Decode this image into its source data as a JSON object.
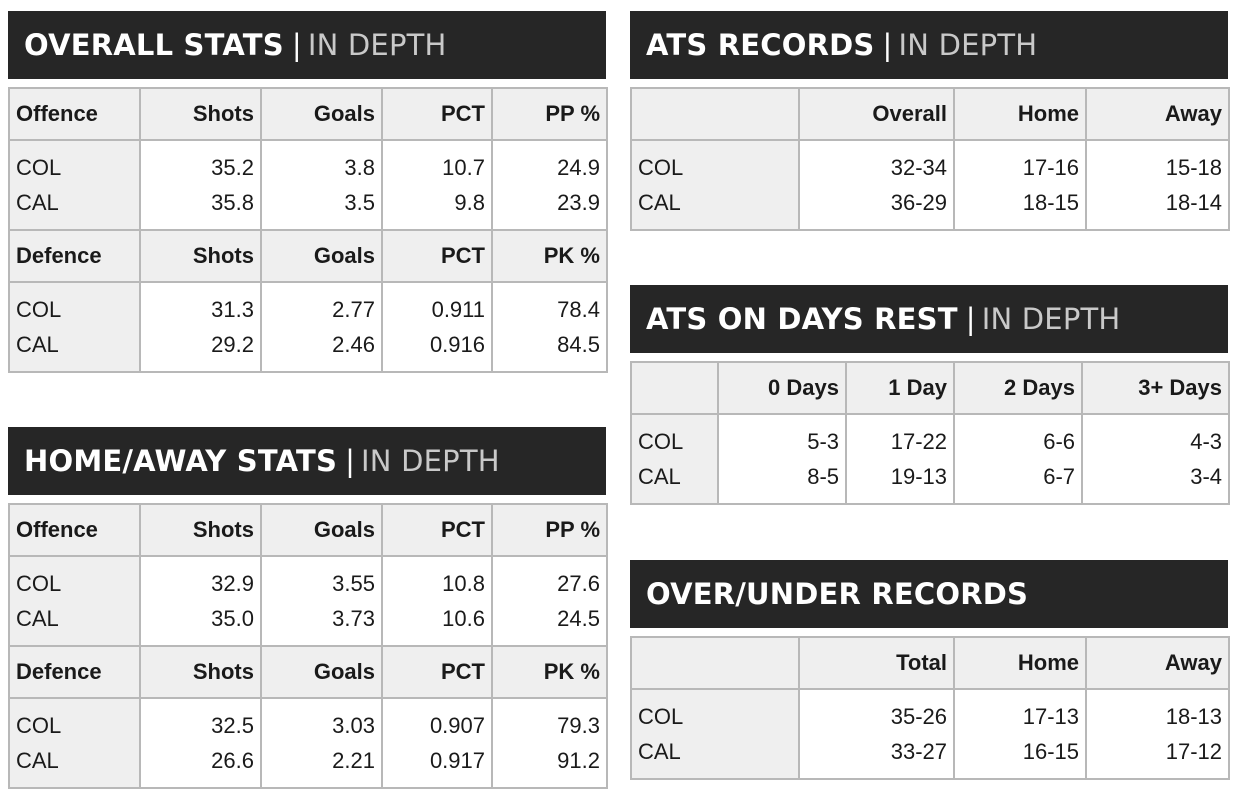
{
  "overall_stats": {
    "title": "OVERALL STATS",
    "subtitle": "IN DEPTH",
    "offence": {
      "label": "Offence",
      "headers": [
        "Shots",
        "Goals",
        "PCT",
        "PP %"
      ],
      "rows": [
        {
          "team": "COL",
          "values": [
            "35.2",
            "3.8",
            "10.7",
            "24.9"
          ]
        },
        {
          "team": "CAL",
          "values": [
            "35.8",
            "3.5",
            "9.8",
            "23.9"
          ]
        }
      ]
    },
    "defence": {
      "label": "Defence",
      "headers": [
        "Shots",
        "Goals",
        "PCT",
        "PK %"
      ],
      "rows": [
        {
          "team": "COL",
          "values": [
            "31.3",
            "2.77",
            "0.911",
            "78.4"
          ]
        },
        {
          "team": "CAL",
          "values": [
            "29.2",
            "2.46",
            "0.916",
            "84.5"
          ]
        }
      ]
    }
  },
  "home_away_stats": {
    "title": "HOME/AWAY STATS",
    "subtitle": "IN DEPTH",
    "offence": {
      "label": "Offence",
      "headers": [
        "Shots",
        "Goals",
        "PCT",
        "PP %"
      ],
      "rows": [
        {
          "team": "COL",
          "values": [
            "32.9",
            "3.55",
            "10.8",
            "27.6"
          ]
        },
        {
          "team": "CAL",
          "values": [
            "35.0",
            "3.73",
            "10.6",
            "24.5"
          ]
        }
      ]
    },
    "defence": {
      "label": "Defence",
      "headers": [
        "Shots",
        "Goals",
        "PCT",
        "PK %"
      ],
      "rows": [
        {
          "team": "COL",
          "values": [
            "32.5",
            "3.03",
            "0.907",
            "79.3"
          ]
        },
        {
          "team": "CAL",
          "values": [
            "26.6",
            "2.21",
            "0.917",
            "91.2"
          ]
        }
      ]
    }
  },
  "ats_records": {
    "title": "ATS RECORDS",
    "subtitle": "IN DEPTH",
    "headers": [
      "Overall",
      "Home",
      "Away"
    ],
    "rows": [
      {
        "team": "COL",
        "values": [
          "32-34",
          "17-16",
          "15-18"
        ]
      },
      {
        "team": "CAL",
        "values": [
          "36-29",
          "18-15",
          "18-14"
        ]
      }
    ]
  },
  "ats_days_rest": {
    "title": "ATS ON DAYS REST",
    "subtitle": "IN DEPTH",
    "headers": [
      "0 Days",
      "1 Day",
      "2 Days",
      "3+ Days"
    ],
    "rows": [
      {
        "team": "COL",
        "values": [
          "5-3",
          "17-22",
          "6-6",
          "4-3"
        ]
      },
      {
        "team": "CAL",
        "values": [
          "8-5",
          "19-13",
          "6-7",
          "3-4"
        ]
      }
    ]
  },
  "over_under_records": {
    "title": "OVER/UNDER RECORDS",
    "headers": [
      "Total",
      "Home",
      "Away"
    ],
    "rows": [
      {
        "team": "COL",
        "values": [
          "35-26",
          "17-13",
          "18-13"
        ]
      },
      {
        "team": "CAL",
        "values": [
          "33-27",
          "16-15",
          "17-12"
        ]
      }
    ]
  }
}
